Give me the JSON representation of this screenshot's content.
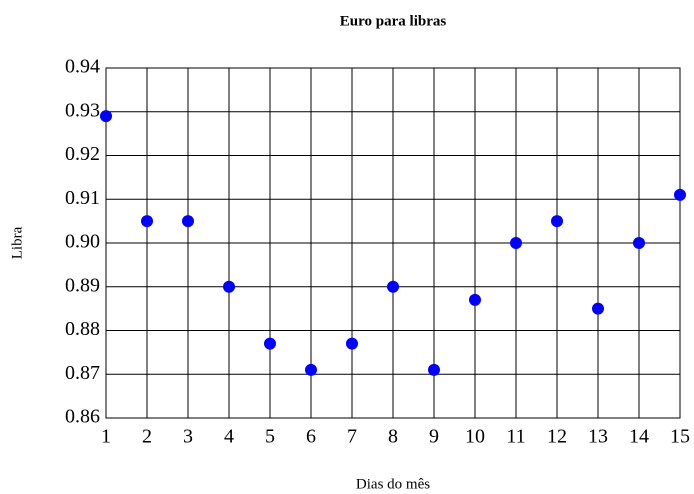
{
  "chart_data": {
    "type": "scatter",
    "title": "Euro para libras",
    "xlabel": "Dias do mês",
    "ylabel": "Libra",
    "x": [
      1,
      2,
      3,
      4,
      5,
      6,
      7,
      8,
      9,
      10,
      11,
      12,
      13,
      14,
      15
    ],
    "series": [
      {
        "color": "#0000ff",
        "values": [
          0.929,
          0.905,
          0.905,
          0.89,
          0.877,
          0.871,
          0.877,
          0.89,
          0.871,
          0.887,
          0.9,
          0.905,
          0.885,
          0.9,
          0.911
        ]
      }
    ],
    "xlim": [
      1,
      15
    ],
    "xticks": [
      1,
      2,
      3,
      4,
      5,
      6,
      7,
      8,
      9,
      10,
      11,
      12,
      13,
      14,
      15
    ],
    "ylim": [
      0.86,
      0.94
    ],
    "yticks": [
      0.86,
      0.87,
      0.88,
      0.89,
      {
        "value": 0.9,
        "label": "0.90"
      },
      0.91,
      0.92,
      0.93,
      0.94
    ],
    "grid": true
  }
}
